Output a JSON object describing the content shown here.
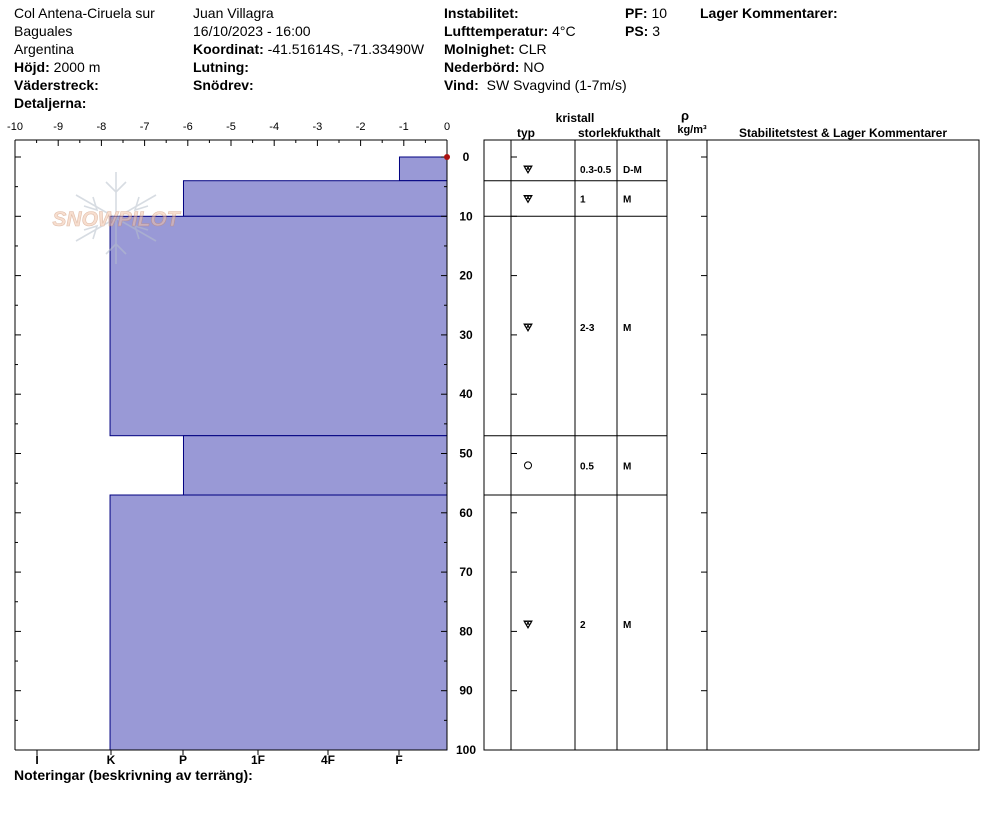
{
  "header": {
    "location_line1": "Col Antena-Ciruela sur",
    "location_line2": "Baguales",
    "location_line3": "Argentina",
    "elevation_label": "Höjd:",
    "elevation_value": "2000 m",
    "aspect_label": "Väderstreck:",
    "aspect_value": "",
    "details_label": "Detaljerna:",
    "details_value": "",
    "observer": "Juan Villagra",
    "datetime": "16/10/2023 - 16:00",
    "coord_label": "Koordinat:",
    "coord_value": "-41.51614S, -71.33490W",
    "slope_label": "Lutning:",
    "slope_value": "",
    "drift_label": "Snödrev:",
    "drift_value": "",
    "instability_label": "Instabilitet:",
    "instability_value": "",
    "air_temp_label": "Lufttemperatur:",
    "air_temp_value": "4°C",
    "sky_label": "Molnighet:",
    "sky_value": "CLR",
    "precip_label": "Nederbörd:",
    "precip_value": "NO",
    "wind_label": "Vind:",
    "wind_value": "SW Svagvind (1-7m/s)",
    "pf_label": "PF:",
    "pf_value": "10",
    "ps_label": "PS:",
    "ps_value": "3",
    "layer_comments_label": "Lager Kommentarer:"
  },
  "watermark": {
    "text": "SNOWPILOT"
  },
  "table_headers": {
    "crystal": "kristall",
    "type": "typ",
    "size": "storlek",
    "moisture": "fukthalt",
    "rho": "ρ",
    "density_unit": "kg/m³",
    "stability": "Stabilitetstest & Lager Kommentarer"
  },
  "footer": {
    "notes_label": "Noteringar (beskrivning av terräng):"
  },
  "colors": {
    "layer_fill": "#9999d6",
    "layer_stroke": "#000080",
    "marker": "#aa1111"
  },
  "chart_data": {
    "type": "snow_profile",
    "x_top": {
      "ticks": [
        -10,
        -9,
        -8,
        -7,
        -6,
        -5,
        -4,
        -3,
        -2,
        -1,
        0
      ],
      "range": [
        -10,
        0
      ]
    },
    "x_bottom": {
      "labels": [
        "I",
        "K",
        "P",
        "1F",
        "4F",
        "F"
      ]
    },
    "y": {
      "ticks": [
        0,
        10,
        20,
        30,
        40,
        50,
        60,
        70,
        80,
        90,
        100
      ],
      "range": [
        0,
        100
      ],
      "inverted": true
    },
    "temperature_points": [
      {
        "depth": 0,
        "temp": 0
      }
    ],
    "layers": [
      {
        "top": 0,
        "bottom": 4,
        "hardness_value": -1.1,
        "type_symbol": "rounding_facet",
        "size": "0.3-0.5",
        "moisture": "D-M"
      },
      {
        "top": 4,
        "bottom": 10,
        "hardness_value": -6.1,
        "type_symbol": "rounding_facet",
        "size": "1",
        "moisture": "M"
      },
      {
        "top": 10,
        "bottom": 47,
        "hardness_value": -7.8,
        "type_symbol": "facet_rounding",
        "size": "2-3",
        "moisture": "M"
      },
      {
        "top": 47,
        "bottom": 57,
        "hardness_value": -6.1,
        "type_symbol": "round",
        "size": "0.5",
        "moisture": "M"
      },
      {
        "top": 57,
        "bottom": 100,
        "hardness_value": -7.8,
        "type_symbol": "rounding_facet",
        "size": "2",
        "moisture": "M"
      }
    ]
  }
}
